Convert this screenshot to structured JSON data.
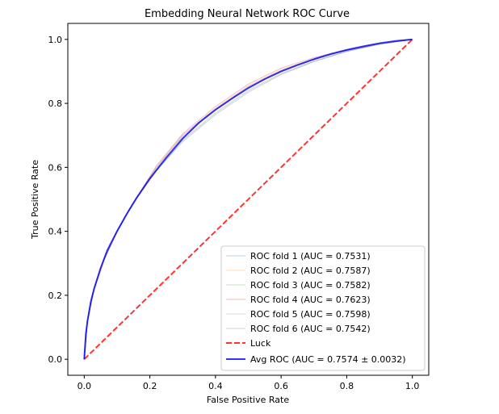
{
  "chart_data": {
    "type": "line",
    "title": "Embedding Neural Network ROC Curve",
    "xlabel": "False Positive Rate",
    "ylabel": "True Positive Rate",
    "xlim": [
      -0.05,
      1.05
    ],
    "ylim": [
      -0.05,
      1.05
    ],
    "xticks": [
      "0.0",
      "0.2",
      "0.4",
      "0.6",
      "0.8",
      "1.0"
    ],
    "yticks": [
      "0.0",
      "0.2",
      "0.4",
      "0.6",
      "0.8",
      "1.0"
    ],
    "grid": false,
    "legend_position": "lower-right",
    "series": [
      {
        "name": "ROC fold 1 (AUC = 0.7531)",
        "color": "#1f77b4",
        "alpha": 0.3,
        "style": "solid",
        "width": 1,
        "x": [
          0,
          0.01,
          0.03,
          0.06,
          0.1,
          0.15,
          0.22,
          0.3,
          0.4,
          0.5,
          0.6,
          0.7,
          0.8,
          0.9,
          1.0
        ],
        "y": [
          0,
          0.12,
          0.22,
          0.31,
          0.4,
          0.49,
          0.59,
          0.68,
          0.765,
          0.835,
          0.89,
          0.93,
          0.962,
          0.985,
          1.0
        ]
      },
      {
        "name": "ROC fold 2 (AUC = 0.7587)",
        "color": "#ff7f0e",
        "alpha": 0.3,
        "style": "solid",
        "width": 1,
        "x": [
          0,
          0.01,
          0.03,
          0.06,
          0.1,
          0.15,
          0.22,
          0.3,
          0.4,
          0.5,
          0.6,
          0.7,
          0.8,
          0.9,
          1.0
        ],
        "y": [
          0,
          0.12,
          0.22,
          0.31,
          0.4,
          0.49,
          0.6,
          0.7,
          0.785,
          0.855,
          0.905,
          0.94,
          0.967,
          0.986,
          1.0
        ]
      },
      {
        "name": "ROC fold 3 (AUC = 0.7582)",
        "color": "#2ca02c",
        "alpha": 0.3,
        "style": "solid",
        "width": 1,
        "x": [
          0,
          0.01,
          0.03,
          0.06,
          0.1,
          0.15,
          0.22,
          0.3,
          0.4,
          0.5,
          0.6,
          0.7,
          0.8,
          0.9,
          1.0
        ],
        "y": [
          0,
          0.12,
          0.22,
          0.31,
          0.4,
          0.49,
          0.595,
          0.695,
          0.78,
          0.85,
          0.9,
          0.937,
          0.965,
          0.985,
          1.0
        ]
      },
      {
        "name": "ROC fold 4 (AUC = 0.7623)",
        "color": "#d62728",
        "alpha": 0.3,
        "style": "solid",
        "width": 1,
        "x": [
          0,
          0.01,
          0.03,
          0.06,
          0.1,
          0.15,
          0.22,
          0.3,
          0.4,
          0.5,
          0.6,
          0.7,
          0.8,
          0.9,
          1.0
        ],
        "y": [
          0,
          0.12,
          0.22,
          0.31,
          0.4,
          0.49,
          0.605,
          0.705,
          0.79,
          0.86,
          0.91,
          0.943,
          0.968,
          0.987,
          1.0
        ]
      },
      {
        "name": "ROC fold 5 (AUC = 0.7598)",
        "color": "#9467bd",
        "alpha": 0.3,
        "style": "solid",
        "width": 1,
        "x": [
          0,
          0.01,
          0.03,
          0.06,
          0.1,
          0.15,
          0.22,
          0.3,
          0.4,
          0.5,
          0.6,
          0.7,
          0.8,
          0.9,
          1.0
        ],
        "y": [
          0,
          0.12,
          0.22,
          0.31,
          0.4,
          0.49,
          0.6,
          0.7,
          0.782,
          0.852,
          0.902,
          0.938,
          0.966,
          0.986,
          1.0
        ]
      },
      {
        "name": "ROC fold 6 (AUC = 0.7542)",
        "color": "#8c564b",
        "alpha": 0.3,
        "style": "solid",
        "width": 1,
        "x": [
          0,
          0.01,
          0.03,
          0.06,
          0.1,
          0.15,
          0.22,
          0.3,
          0.4,
          0.5,
          0.6,
          0.7,
          0.8,
          0.9,
          1.0
        ],
        "y": [
          0,
          0.12,
          0.22,
          0.31,
          0.4,
          0.49,
          0.59,
          0.685,
          0.77,
          0.84,
          0.893,
          0.932,
          0.963,
          0.985,
          1.0
        ]
      },
      {
        "name": "Luck",
        "color": "#ff0000",
        "alpha": 0.8,
        "style": "dashed",
        "width": 2,
        "x": [
          0,
          1
        ],
        "y": [
          0,
          1
        ]
      },
      {
        "name": "Avg ROC (AUC = 0.7574 ± 0.0032)",
        "color": "#0000ff",
        "alpha": 0.8,
        "style": "solid",
        "width": 2,
        "x": [
          0,
          0.005,
          0.01,
          0.02,
          0.03,
          0.05,
          0.07,
          0.1,
          0.13,
          0.16,
          0.2,
          0.25,
          0.3,
          0.35,
          0.4,
          0.45,
          0.5,
          0.55,
          0.6,
          0.65,
          0.7,
          0.75,
          0.8,
          0.85,
          0.9,
          0.95,
          1.0
        ],
        "y": [
          0,
          0.08,
          0.12,
          0.18,
          0.22,
          0.285,
          0.34,
          0.4,
          0.455,
          0.505,
          0.565,
          0.63,
          0.69,
          0.74,
          0.78,
          0.815,
          0.848,
          0.876,
          0.9,
          0.92,
          0.938,
          0.954,
          0.967,
          0.978,
          0.988,
          0.995,
          1.0
        ]
      }
    ]
  }
}
